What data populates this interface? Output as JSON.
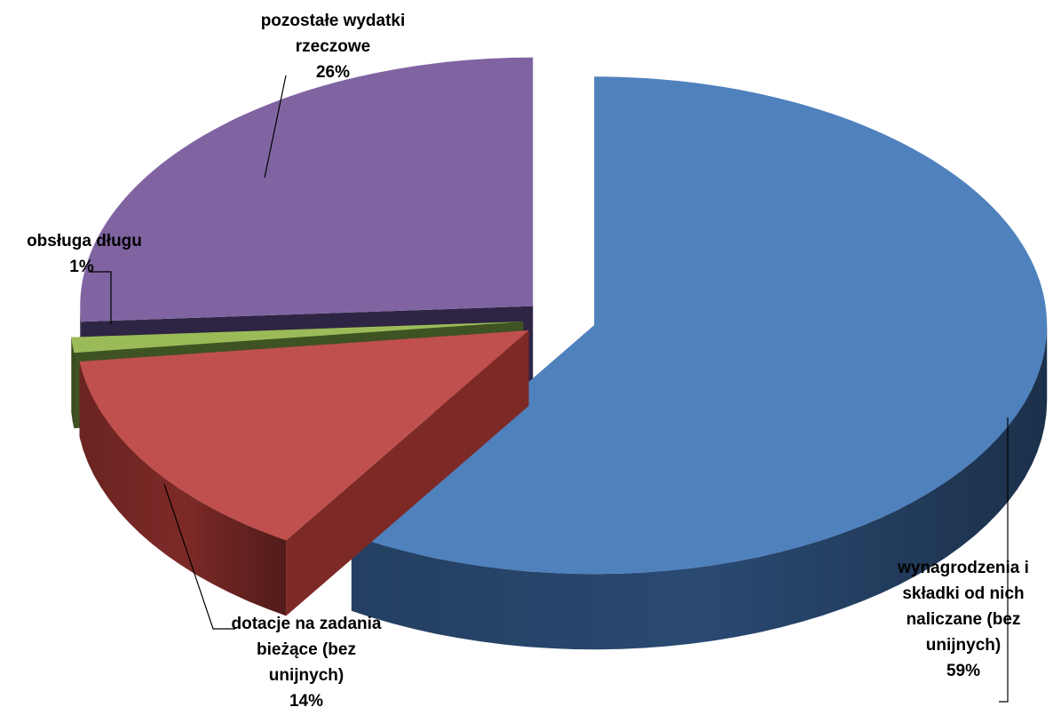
{
  "chart_data": {
    "type": "pie",
    "style": "3d-exploded",
    "legend": "none",
    "slices": [
      {
        "label_lines": [
          "wynagrodzenia i",
          "składki od nich",
          "naliczane (bez",
          "unijnych)"
        ],
        "value": 59,
        "value_label": "59%",
        "color": "#4F81BD",
        "side_color": "#2A4A72"
      },
      {
        "label_lines": [
          "dotacje na zadania",
          "bieżące (bez",
          "unijnych)"
        ],
        "value": 14,
        "value_label": "14%",
        "color": "#C0504D",
        "side_color": "#7D2A27"
      },
      {
        "label_lines": [
          "obsługa długu"
        ],
        "value": 1,
        "value_label": "1%",
        "color": "#9BBB59",
        "side_color": "#3F5322"
      },
      {
        "label_lines": [
          "pozostałe wydatki",
          "rzeczowe"
        ],
        "value": 26,
        "value_label": "26%",
        "color": "#8064A2",
        "side_color": "#2E2443"
      }
    ]
  }
}
